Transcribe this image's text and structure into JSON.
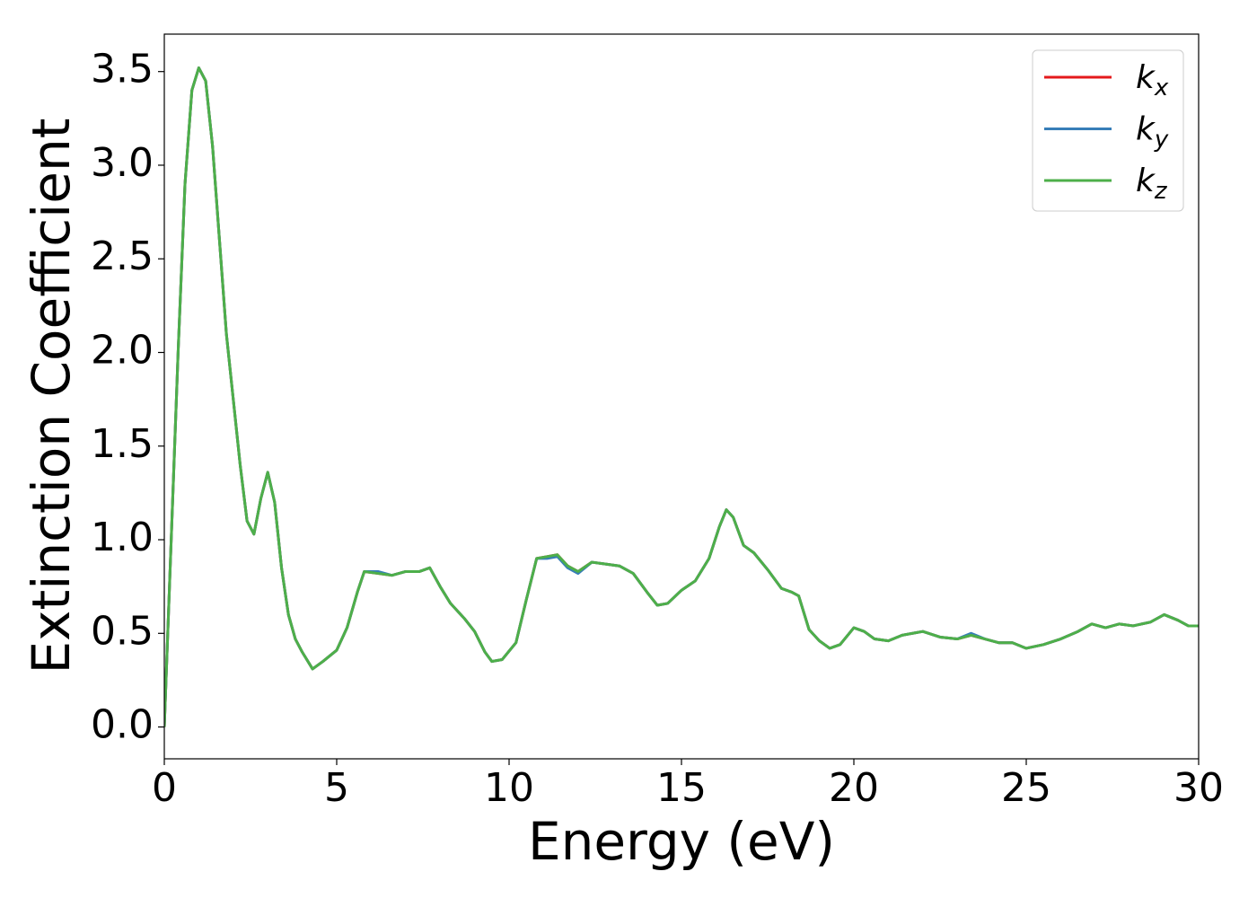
{
  "chart_data": {
    "type": "line",
    "xlabel": "Energy (eV)",
    "ylabel": "Extinction Coefficient",
    "xlim": [
      0,
      30
    ],
    "ylim": [
      -0.17,
      3.7
    ],
    "xticks": [
      0,
      5,
      10,
      15,
      20,
      25,
      30
    ],
    "yticks": [
      {
        "value": 0,
        "label": "0.0"
      },
      0.5,
      {
        "value": 1,
        "label": "1.0"
      },
      1.5,
      {
        "value": 2,
        "label": "2.0"
      },
      2.5,
      {
        "value": 3,
        "label": "3.0"
      },
      3.5
    ],
    "legend": "upper right",
    "x": [
      0,
      0.2,
      0.4,
      0.6,
      0.8,
      1.0,
      1.2,
      1.4,
      1.6,
      1.8,
      2.0,
      2.2,
      2.4,
      2.6,
      2.8,
      3.0,
      3.2,
      3.4,
      3.6,
      3.8,
      4.0,
      4.3,
      4.6,
      5.0,
      5.3,
      5.6,
      5.8,
      6.2,
      6.6,
      7.0,
      7.4,
      7.7,
      8.0,
      8.3,
      8.7,
      9.0,
      9.3,
      9.5,
      9.8,
      10.2,
      10.5,
      10.8,
      11.1,
      11.4,
      11.7,
      12.0,
      12.4,
      12.8,
      13.2,
      13.6,
      14.0,
      14.3,
      14.6,
      15.0,
      15.4,
      15.8,
      16.1,
      16.3,
      16.5,
      16.8,
      17.1,
      17.5,
      17.9,
      18.2,
      18.4,
      18.7,
      19.0,
      19.3,
      19.6,
      20.0,
      20.3,
      20.6,
      21.0,
      21.4,
      22.0,
      22.5,
      23.0,
      23.4,
      23.8,
      24.2,
      24.6,
      25.0,
      25.5,
      26.0,
      26.5,
      26.9,
      27.3,
      27.7,
      28.1,
      28.6,
      29.0,
      29.4,
      29.7,
      30.0
    ],
    "series": [
      {
        "name": "kx",
        "color": "#e41a1c",
        "values": [
          0.0,
          1.0,
          2.0,
          2.9,
          3.4,
          3.52,
          3.45,
          3.1,
          2.6,
          2.1,
          1.75,
          1.4,
          1.1,
          1.03,
          1.22,
          1.36,
          1.2,
          0.85,
          0.6,
          0.47,
          0.4,
          0.31,
          0.35,
          0.41,
          0.53,
          0.72,
          0.83,
          0.82,
          0.81,
          0.83,
          0.83,
          0.85,
          0.75,
          0.66,
          0.58,
          0.51,
          0.4,
          0.35,
          0.36,
          0.45,
          0.68,
          0.9,
          0.91,
          0.92,
          0.86,
          0.83,
          0.88,
          0.87,
          0.86,
          0.82,
          0.72,
          0.65,
          0.66,
          0.73,
          0.78,
          0.9,
          1.07,
          1.16,
          1.12,
          0.97,
          0.93,
          0.84,
          0.74,
          0.72,
          0.7,
          0.52,
          0.46,
          0.42,
          0.44,
          0.53,
          0.51,
          0.47,
          0.46,
          0.49,
          0.51,
          0.48,
          0.47,
          0.49,
          0.47,
          0.45,
          0.45,
          0.42,
          0.44,
          0.47,
          0.51,
          0.55,
          0.53,
          0.55,
          0.54,
          0.56,
          0.6,
          0.57,
          0.54,
          0.54
        ]
      },
      {
        "name": "ky",
        "color": "#377eb8",
        "values": [
          0.0,
          1.0,
          2.0,
          2.9,
          3.4,
          3.52,
          3.45,
          3.1,
          2.6,
          2.1,
          1.75,
          1.4,
          1.1,
          1.03,
          1.22,
          1.36,
          1.2,
          0.85,
          0.6,
          0.47,
          0.4,
          0.31,
          0.35,
          0.41,
          0.53,
          0.72,
          0.83,
          0.83,
          0.81,
          0.83,
          0.83,
          0.85,
          0.75,
          0.66,
          0.58,
          0.51,
          0.4,
          0.35,
          0.36,
          0.45,
          0.68,
          0.9,
          0.9,
          0.91,
          0.85,
          0.82,
          0.88,
          0.87,
          0.86,
          0.82,
          0.72,
          0.65,
          0.66,
          0.73,
          0.78,
          0.9,
          1.07,
          1.16,
          1.12,
          0.97,
          0.93,
          0.84,
          0.74,
          0.72,
          0.7,
          0.52,
          0.46,
          0.42,
          0.44,
          0.53,
          0.51,
          0.47,
          0.46,
          0.49,
          0.51,
          0.48,
          0.47,
          0.5,
          0.47,
          0.45,
          0.45,
          0.42,
          0.44,
          0.47,
          0.51,
          0.55,
          0.53,
          0.55,
          0.54,
          0.56,
          0.6,
          0.57,
          0.54,
          0.54
        ]
      },
      {
        "name": "kz",
        "color": "#4daf4a",
        "values": [
          0.0,
          1.0,
          2.0,
          2.9,
          3.4,
          3.52,
          3.45,
          3.1,
          2.6,
          2.1,
          1.75,
          1.4,
          1.1,
          1.03,
          1.22,
          1.36,
          1.2,
          0.85,
          0.6,
          0.47,
          0.4,
          0.31,
          0.35,
          0.41,
          0.53,
          0.72,
          0.83,
          0.82,
          0.81,
          0.83,
          0.83,
          0.85,
          0.75,
          0.66,
          0.58,
          0.51,
          0.4,
          0.35,
          0.36,
          0.45,
          0.68,
          0.9,
          0.91,
          0.92,
          0.86,
          0.83,
          0.88,
          0.87,
          0.86,
          0.82,
          0.72,
          0.65,
          0.66,
          0.73,
          0.78,
          0.9,
          1.07,
          1.16,
          1.12,
          0.97,
          0.93,
          0.84,
          0.74,
          0.72,
          0.7,
          0.52,
          0.46,
          0.42,
          0.44,
          0.53,
          0.51,
          0.47,
          0.46,
          0.49,
          0.51,
          0.48,
          0.47,
          0.49,
          0.47,
          0.45,
          0.45,
          0.42,
          0.44,
          0.47,
          0.51,
          0.55,
          0.53,
          0.55,
          0.54,
          0.56,
          0.6,
          0.57,
          0.54,
          0.54
        ]
      }
    ]
  }
}
